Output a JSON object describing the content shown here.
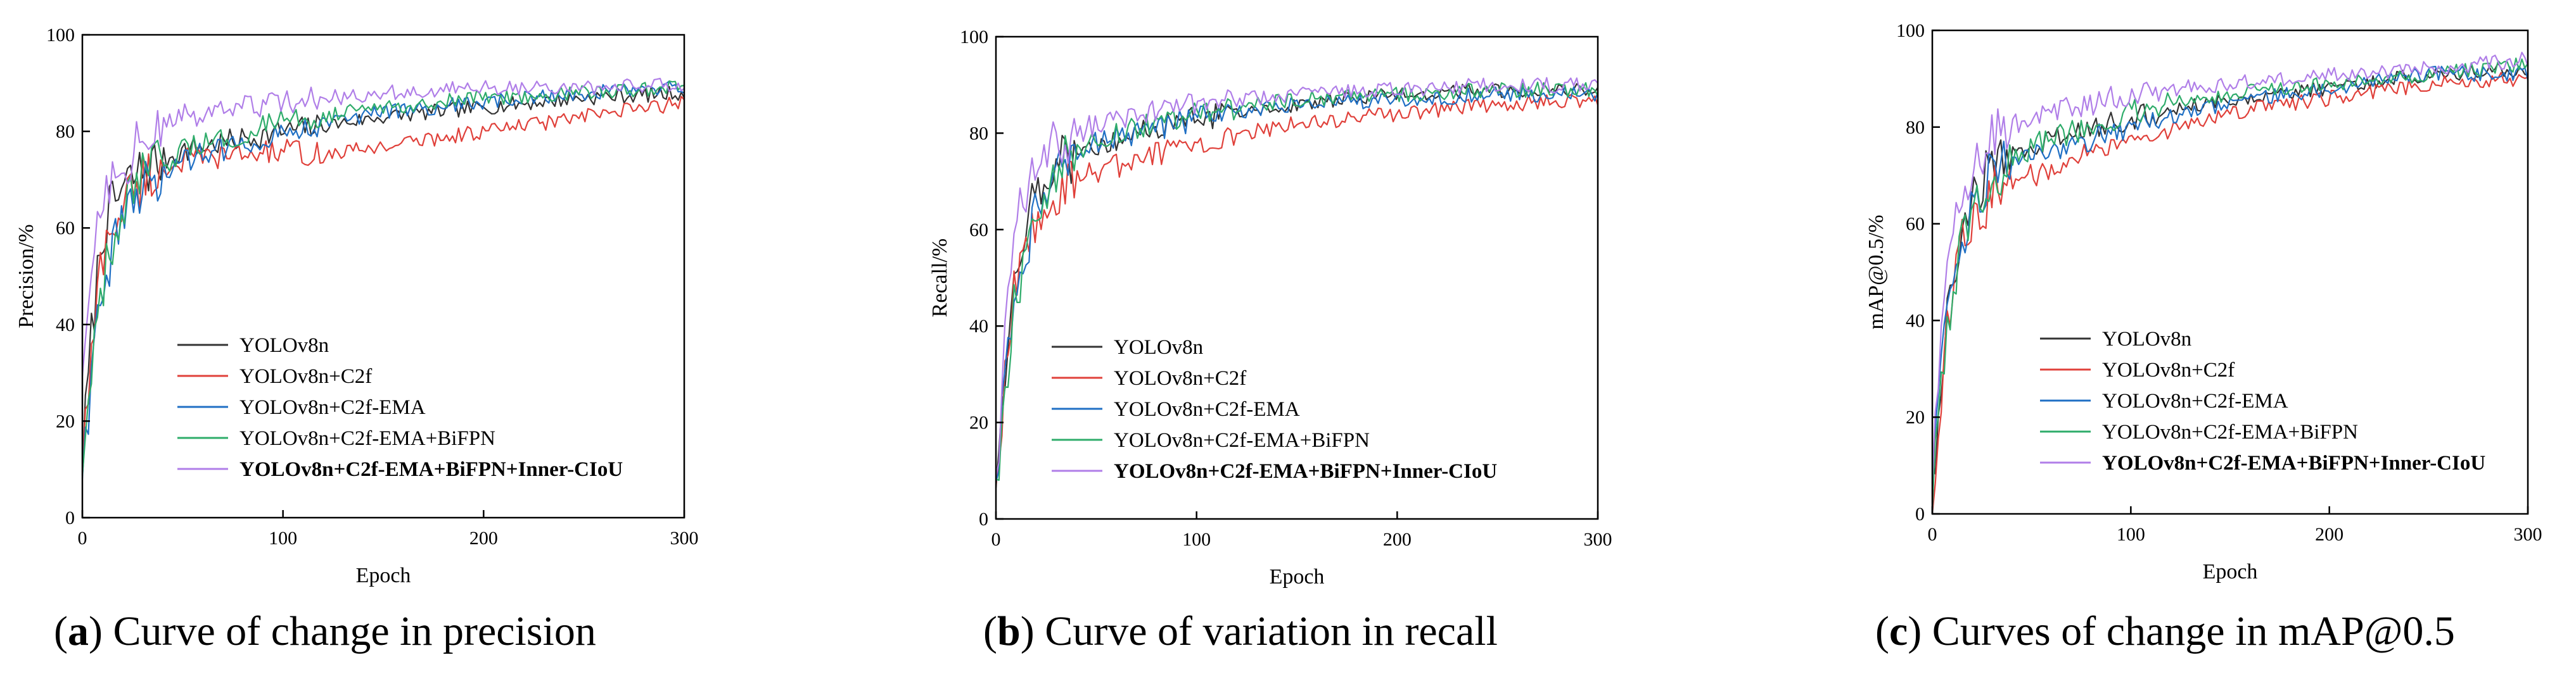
{
  "legend": [
    {
      "name": "YOLOv8n",
      "color": "#333333",
      "bold": false
    },
    {
      "name": "YOLOv8n+C2f",
      "color": "#e0403a",
      "bold": false
    },
    {
      "name": "YOLOv8n+C2f-EMA",
      "color": "#1f6fc4",
      "bold": false
    },
    {
      "name": "YOLOv8n+C2f-EMA+BiFPN",
      "color": "#2eac6a",
      "bold": false
    },
    {
      "name": "YOLOv8n+C2f-EMA+BiFPN+Inner-CIoU",
      "color": "#b07ee8",
      "bold": true
    }
  ],
  "chart_data": [
    {
      "type": "line",
      "caption_letter": "a",
      "caption_text": " Curve of change in precision",
      "xlabel": "Epoch",
      "ylabel": "Precision/%",
      "xlim": [
        0,
        300
      ],
      "ylim": [
        0,
        100
      ],
      "xticks": [
        0,
        100,
        200,
        300
      ],
      "yticks": [
        0,
        20,
        40,
        60,
        80,
        100
      ],
      "grid": false,
      "legend_position": "center-left",
      "series": [
        {
          "name": "YOLOv8n",
          "values": [
            [
              0,
              12
            ],
            [
              5,
              40
            ],
            [
              10,
              60
            ],
            [
              20,
              68
            ],
            [
              30,
              72
            ],
            [
              50,
              76
            ],
            [
              100,
              80
            ],
            [
              150,
              83
            ],
            [
              200,
              85
            ],
            [
              250,
              87
            ],
            [
              300,
              88
            ]
          ]
        },
        {
          "name": "YOLOv8n+C2f",
          "values": [
            [
              0,
              12
            ],
            [
              5,
              35
            ],
            [
              10,
              55
            ],
            [
              20,
              65
            ],
            [
              30,
              70
            ],
            [
              50,
              74
            ],
            [
              100,
              76
            ],
            [
              120,
              75
            ],
            [
              150,
              77
            ],
            [
              200,
              80
            ],
            [
              250,
              83
            ],
            [
              300,
              86
            ]
          ]
        },
        {
          "name": "YOLOv8n+C2f-EMA",
          "values": [
            [
              0,
              10
            ],
            [
              5,
              32
            ],
            [
              10,
              50
            ],
            [
              20,
              60
            ],
            [
              30,
              68
            ],
            [
              50,
              74
            ],
            [
              100,
              80
            ],
            [
              150,
              84
            ],
            [
              200,
              86
            ],
            [
              250,
              88
            ],
            [
              300,
              89
            ]
          ]
        },
        {
          "name": "YOLOv8n+C2f-EMA+BiFPN",
          "values": [
            [
              0,
              10
            ],
            [
              5,
              30
            ],
            [
              10,
              48
            ],
            [
              20,
              62
            ],
            [
              30,
              70
            ],
            [
              50,
              76
            ],
            [
              100,
              82
            ],
            [
              150,
              85
            ],
            [
              200,
              87
            ],
            [
              250,
              88
            ],
            [
              300,
              89
            ]
          ]
        },
        {
          "name": "YOLOv8n+C2f-EMA+BiFPN+Inner-CIoU",
          "values": [
            [
              0,
              30
            ],
            [
              5,
              55
            ],
            [
              10,
              68
            ],
            [
              20,
              74
            ],
            [
              30,
              78
            ],
            [
              50,
              83
            ],
            [
              100,
              86
            ],
            [
              150,
              88
            ],
            [
              200,
              89
            ],
            [
              250,
              89
            ],
            [
              300,
              90
            ]
          ]
        }
      ]
    },
    {
      "type": "line",
      "caption_letter": "b",
      "caption_text": " Curve of variation in recall",
      "xlabel": "Epoch",
      "ylabel": "Recall/%",
      "xlim": [
        0,
        300
      ],
      "ylim": [
        0,
        100
      ],
      "xticks": [
        0,
        100,
        200,
        300
      ],
      "yticks": [
        0,
        20,
        40,
        60,
        80,
        100
      ],
      "grid": false,
      "legend_position": "center-left",
      "series": [
        {
          "name": "YOLOv8n",
          "values": [
            [
              0,
              5
            ],
            [
              5,
              35
            ],
            [
              10,
              55
            ],
            [
              20,
              68
            ],
            [
              30,
              74
            ],
            [
              50,
              78
            ],
            [
              100,
              83
            ],
            [
              150,
              86
            ],
            [
              200,
              88
            ],
            [
              250,
              89
            ],
            [
              300,
              89
            ]
          ]
        },
        {
          "name": "YOLOv8n+C2f",
          "values": [
            [
              0,
              5
            ],
            [
              5,
              30
            ],
            [
              10,
              50
            ],
            [
              20,
              62
            ],
            [
              30,
              68
            ],
            [
              50,
              72
            ],
            [
              100,
              78
            ],
            [
              150,
              82
            ],
            [
              200,
              84
            ],
            [
              250,
              86
            ],
            [
              300,
              87
            ]
          ]
        },
        {
          "name": "YOLOv8n+C2f-EMA",
          "values": [
            [
              0,
              5
            ],
            [
              5,
              30
            ],
            [
              10,
              50
            ],
            [
              20,
              64
            ],
            [
              30,
              72
            ],
            [
              50,
              78
            ],
            [
              100,
              83
            ],
            [
              150,
              86
            ],
            [
              200,
              87
            ],
            [
              250,
              88
            ],
            [
              300,
              88
            ]
          ]
        },
        {
          "name": "YOLOv8n+C2f-EMA+BiFPN",
          "values": [
            [
              0,
              5
            ],
            [
              5,
              28
            ],
            [
              10,
              48
            ],
            [
              20,
              62
            ],
            [
              30,
              72
            ],
            [
              50,
              79
            ],
            [
              100,
              84
            ],
            [
              150,
              87
            ],
            [
              200,
              88
            ],
            [
              250,
              89
            ],
            [
              300,
              89
            ]
          ]
        },
        {
          "name": "YOLOv8n+C2f-EMA+BiFPN+Inner-CIoU",
          "values": [
            [
              0,
              5
            ],
            [
              5,
              45
            ],
            [
              10,
              65
            ],
            [
              20,
              74
            ],
            [
              30,
              78
            ],
            [
              50,
              82
            ],
            [
              100,
              86
            ],
            [
              150,
              88
            ],
            [
              200,
              89
            ],
            [
              250,
              90
            ],
            [
              300,
              90
            ]
          ]
        }
      ]
    },
    {
      "type": "line",
      "caption_letter": "c",
      "caption_text": " Curves of change in mAP@0.5",
      "xlabel": "Epoch",
      "ylabel": "mAP@0.5/%",
      "xlim": [
        0,
        300
      ],
      "ylim": [
        0,
        100
      ],
      "xticks": [
        0,
        100,
        200,
        300
      ],
      "yticks": [
        0,
        20,
        40,
        60,
        80,
        100
      ],
      "grid": false,
      "legend_position": "center-left",
      "series": [
        {
          "name": "YOLOv8n",
          "values": [
            [
              0,
              5
            ],
            [
              5,
              30
            ],
            [
              10,
              50
            ],
            [
              20,
              66
            ],
            [
              30,
              72
            ],
            [
              50,
              76
            ],
            [
              100,
              82
            ],
            [
              150,
              86
            ],
            [
              200,
              88
            ],
            [
              250,
              91
            ],
            [
              300,
              92
            ]
          ]
        },
        {
          "name": "YOLOv8n+C2f",
          "values": [
            [
              0,
              5
            ],
            [
              5,
              28
            ],
            [
              10,
              48
            ],
            [
              20,
              62
            ],
            [
              30,
              66
            ],
            [
              50,
              70
            ],
            [
              100,
              78
            ],
            [
              150,
              83
            ],
            [
              200,
              86
            ],
            [
              250,
              89
            ],
            [
              300,
              90
            ]
          ]
        },
        {
          "name": "YOLOv8n+C2f-EMA",
          "values": [
            [
              0,
              5
            ],
            [
              5,
              30
            ],
            [
              10,
              50
            ],
            [
              20,
              64
            ],
            [
              30,
              70
            ],
            [
              50,
              74
            ],
            [
              100,
              80
            ],
            [
              150,
              85
            ],
            [
              200,
              88
            ],
            [
              250,
              91
            ],
            [
              300,
              91
            ]
          ]
        },
        {
          "name": "YOLOv8n+C2f-EMA+BiFPN",
          "values": [
            [
              0,
              5
            ],
            [
              5,
              28
            ],
            [
              10,
              48
            ],
            [
              20,
              64
            ],
            [
              30,
              70
            ],
            [
              50,
              76
            ],
            [
              100,
              83
            ],
            [
              150,
              87
            ],
            [
              200,
              89
            ],
            [
              250,
              91
            ],
            [
              300,
              93
            ]
          ]
        },
        {
          "name": "YOLOv8n+C2f-EMA+BiFPN+Inner-CIoU",
          "values": [
            [
              0,
              10
            ],
            [
              5,
              40
            ],
            [
              10,
              60
            ],
            [
              20,
              72
            ],
            [
              30,
              78
            ],
            [
              50,
              82
            ],
            [
              100,
              87
            ],
            [
              150,
              89
            ],
            [
              200,
              91
            ],
            [
              250,
              92
            ],
            [
              300,
              94
            ]
          ]
        }
      ]
    }
  ]
}
